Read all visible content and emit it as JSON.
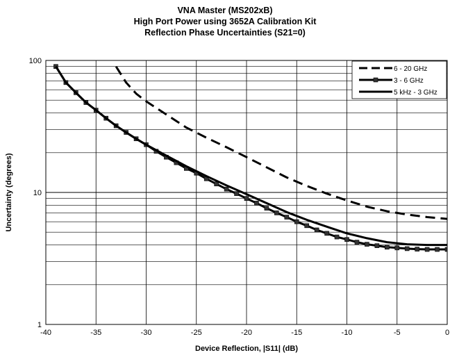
{
  "chart_data": {
    "type": "line",
    "title": "VNA Master (MS202xB)",
    "subtitle_lines": [
      "High Port Power using 3652A Calibration Kit",
      "Reflection Phase Uncertainties (S21=0)"
    ],
    "xlabel": "Device Reflection, |S11| (dB)",
    "ylabel": "Uncertainty (degrees)",
    "xlim": [
      -40,
      0
    ],
    "ylim": [
      1,
      100
    ],
    "yscale": "log",
    "grid": true,
    "legend_position": "top-right",
    "x_ticks": [
      "-40",
      "-35",
      "-30",
      "-25",
      "-20",
      "-15",
      "-10",
      "-5",
      "0"
    ],
    "y_ticks": [
      "1",
      "10",
      "100"
    ],
    "series": [
      {
        "name": "6 - 20 GHz",
        "style": "dashed",
        "x": [
          -33,
          -32,
          -31,
          -30,
          -28,
          -26,
          -24,
          -22,
          -20,
          -18,
          -16,
          -14,
          -12,
          -10,
          -8,
          -6,
          -4,
          -2,
          0
        ],
        "values": [
          90,
          68,
          56,
          49,
          39,
          31,
          26,
          22,
          18.5,
          15.5,
          13,
          11.2,
          9.8,
          8.7,
          7.8,
          7.2,
          6.8,
          6.5,
          6.3
        ]
      },
      {
        "name": "3 - 6 GHz",
        "style": "solid-square-markers",
        "x": [
          -39,
          -38,
          -37,
          -36,
          -35,
          -34,
          -33,
          -32,
          -31,
          -30,
          -29,
          -28,
          -27,
          -26,
          -25,
          -24,
          -23,
          -22,
          -21,
          -20,
          -19,
          -18,
          -17,
          -16,
          -15,
          -14,
          -13,
          -12,
          -11,
          -10,
          -9,
          -8,
          -7,
          -6,
          -5,
          -4,
          -3,
          -2,
          -1,
          0
        ],
        "values": [
          90,
          68,
          57,
          48,
          42,
          36.5,
          32,
          28.5,
          25.5,
          23,
          20.5,
          18.5,
          16.8,
          15.2,
          14,
          12.7,
          11.6,
          10.6,
          9.8,
          9,
          8.3,
          7.6,
          7,
          6.5,
          6,
          5.6,
          5.2,
          4.9,
          4.6,
          4.4,
          4.2,
          4.05,
          3.95,
          3.85,
          3.8,
          3.75,
          3.72,
          3.7,
          3.7,
          3.7
        ]
      },
      {
        "name": "5 kHz - 3 GHz",
        "style": "solid",
        "x": [
          -39,
          -38,
          -37,
          -36,
          -35,
          -34,
          -33,
          -32,
          -31,
          -30,
          -28,
          -26,
          -24,
          -22,
          -20,
          -18,
          -16,
          -14,
          -12,
          -10,
          -8,
          -6,
          -4,
          -2,
          0
        ],
        "values": [
          90,
          68,
          57,
          48,
          42,
          36.5,
          32,
          28.5,
          25.5,
          23,
          19,
          15.8,
          13.3,
          11.3,
          9.7,
          8.3,
          7.1,
          6.2,
          5.5,
          4.9,
          4.5,
          4.2,
          4.05,
          4,
          4
        ]
      }
    ]
  }
}
